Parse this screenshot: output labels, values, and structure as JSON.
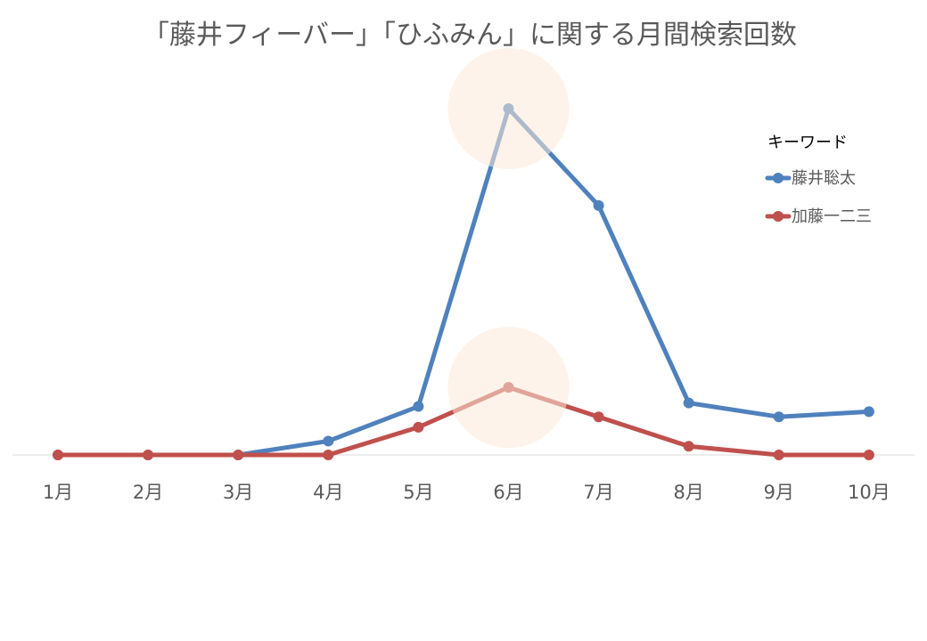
{
  "chart_data": {
    "type": "line",
    "title": "「藤井フィーバー」「ひふみん」に関する月間検索回数",
    "xlabel": "",
    "ylabel": "",
    "categories": [
      "1月",
      "2月",
      "3月",
      "4月",
      "5月",
      "6月",
      "7月",
      "8月",
      "9月",
      "10月"
    ],
    "ylim": [
      0,
      100
    ],
    "grid": false,
    "legend": {
      "title": "キーワード",
      "position": "right"
    },
    "series": [
      {
        "name": "藤井聡太",
        "color": "#4F81BD",
        "values": [
          0,
          0,
          0,
          4,
          14,
          100,
          72,
          15,
          11,
          12.5
        ]
      },
      {
        "name": "加藤一二三",
        "color": "#C0504D",
        "values": [
          0,
          0,
          0,
          0,
          8,
          19.5,
          11,
          2.5,
          0,
          0
        ]
      }
    ],
    "highlight": {
      "category": "6月",
      "color": "#FCE9D9"
    }
  }
}
